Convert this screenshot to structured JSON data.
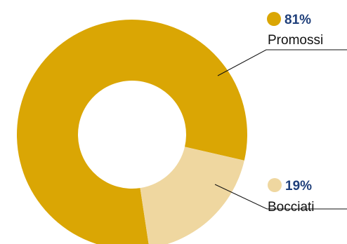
{
  "chart_data": {
    "type": "pie",
    "variant": "donut",
    "categories": [
      "Promossi",
      "Bocciati"
    ],
    "values": [
      81,
      19
    ],
    "value_labels": [
      "81%",
      "19%"
    ],
    "colors": [
      "#daa604",
      "#efd7a0"
    ],
    "label_color": "#1f3f7a",
    "legend_placement": "right"
  }
}
